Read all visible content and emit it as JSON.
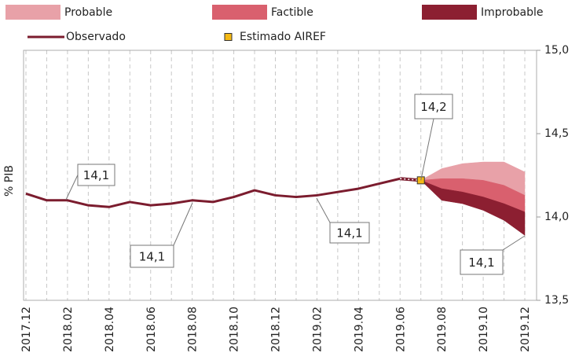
{
  "chart_data": {
    "type": "fan",
    "y_label": "% PIB",
    "categories": [
      "2017.12",
      null,
      "2018.02",
      null,
      "2018.04",
      null,
      "2018.06",
      null,
      "2018.08",
      null,
      "2018.10",
      null,
      "2018.12",
      null,
      "2019.02",
      null,
      "2019.04",
      null,
      "2019.06",
      null,
      "2019.08",
      null,
      "2019.10",
      null,
      "2019.12"
    ],
    "ylim": [
      13.5,
      15.0
    ],
    "yticks": [
      {
        "value": 13.5,
        "label": "13,5"
      },
      {
        "value": 14.0,
        "label": "14,0"
      },
      {
        "value": 14.5,
        "label": "14,5"
      },
      {
        "value": 15.0,
        "label": "15,0"
      }
    ],
    "grid": true,
    "series": [
      {
        "name": "Observado",
        "color": "#7b1c2e",
        "values": [
          14.14,
          14.1,
          14.1,
          14.07,
          14.06,
          14.09,
          14.07,
          14.08,
          14.1,
          14.09,
          14.12,
          14.16,
          14.13,
          14.12,
          14.13,
          14.15,
          14.17,
          14.2,
          14.23,
          null,
          null,
          null,
          null,
          null,
          null
        ]
      },
      {
        "name": "Estimado AIREF",
        "color": "#f5b914",
        "values": [
          null,
          null,
          null,
          null,
          null,
          null,
          null,
          null,
          null,
          null,
          null,
          null,
          null,
          null,
          null,
          null,
          null,
          null,
          null,
          14.22,
          null,
          null,
          null,
          null,
          null
        ]
      }
    ],
    "bands": [
      {
        "name": "Probable",
        "color": "#e8a1a8",
        "low": [
          null,
          null,
          null,
          null,
          null,
          null,
          null,
          null,
          null,
          null,
          null,
          null,
          null,
          null,
          null,
          null,
          null,
          null,
          null,
          14.22,
          14.23,
          14.23,
          14.22,
          14.19,
          14.13
        ],
        "high": [
          null,
          null,
          null,
          null,
          null,
          null,
          null,
          null,
          null,
          null,
          null,
          null,
          null,
          null,
          null,
          null,
          null,
          null,
          null,
          14.22,
          14.29,
          14.32,
          14.33,
          14.33,
          14.27
        ]
      },
      {
        "name": "Factible",
        "color": "#d9606e",
        "low": [
          null,
          null,
          null,
          null,
          null,
          null,
          null,
          null,
          null,
          null,
          null,
          null,
          null,
          null,
          null,
          null,
          null,
          null,
          null,
          14.22,
          14.17,
          14.15,
          14.12,
          14.08,
          14.03
        ],
        "high": [
          null,
          null,
          null,
          null,
          null,
          null,
          null,
          null,
          null,
          null,
          null,
          null,
          null,
          null,
          null,
          null,
          null,
          null,
          null,
          14.22,
          14.23,
          14.23,
          14.22,
          14.19,
          14.13
        ]
      },
      {
        "name": "Improbable",
        "color": "#8c1f31",
        "low": [
          null,
          null,
          null,
          null,
          null,
          null,
          null,
          null,
          null,
          null,
          null,
          null,
          null,
          null,
          null,
          null,
          null,
          null,
          null,
          14.22,
          14.1,
          14.08,
          14.04,
          13.98,
          13.89
        ],
        "high": [
          null,
          null,
          null,
          null,
          null,
          null,
          null,
          null,
          null,
          null,
          null,
          null,
          null,
          null,
          null,
          null,
          null,
          null,
          null,
          14.22,
          14.17,
          14.15,
          14.12,
          14.08,
          14.03
        ]
      }
    ],
    "annotations": [
      "14,1",
      "14,1",
      "14,1",
      "14,1",
      "14,2"
    ]
  }
}
